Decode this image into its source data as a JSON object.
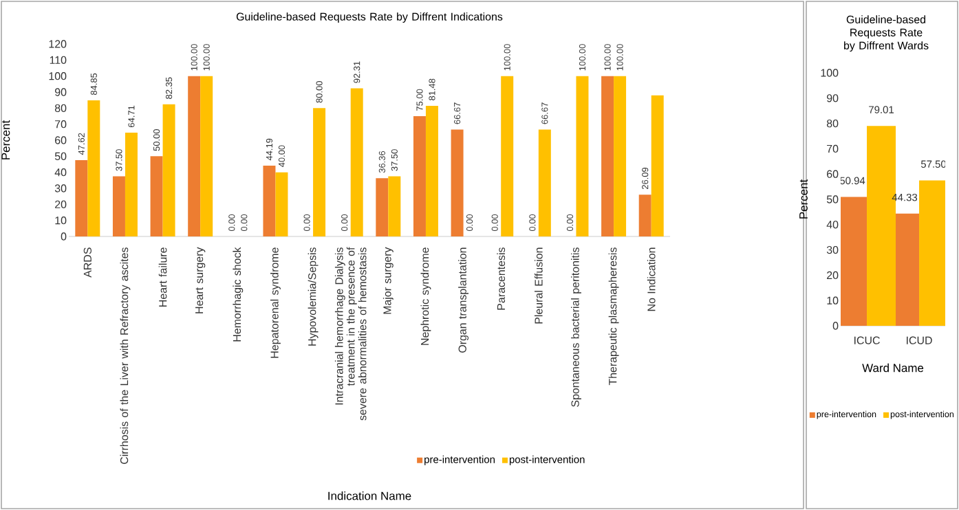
{
  "chart_data": [
    {
      "type": "bar",
      "title": "Guideline-based Requests Rate by Diffrent Indications",
      "xlabel": "Indication Name",
      "ylabel": "Percent",
      "categories": [
        "ARDS",
        "Cirrhosis of the Liver with Refractory ascites",
        "Heart failure",
        "Heart surgery",
        "Hemorrhagic shock",
        "Hepatorenal syndrome",
        "Hypovolemia/Sepsis",
        "Intracranial hemorrhage Dialysis treatment in the presence of severe abnormalities of hemostasis",
        "Major surgery",
        "Nephrotic syndrome",
        "Organ transplantation",
        "Paracentesis",
        "Pleural Effusion",
        "Spontaneous bacterial peritonitis",
        "Therapeutic plasmapheresis",
        "No Indication"
      ],
      "series": [
        {
          "name": "pre-intervention",
          "color": "#ed7d31",
          "values": [
            47.62,
            37.5,
            50.0,
            100.0,
            0,
            44.19,
            0,
            0,
            36.36,
            75.0,
            66.67,
            0,
            0,
            0,
            100.0,
            26.09
          ],
          "value_labels": [
            "47.62",
            "37.50",
            "50.00",
            "100.00",
            "0.00",
            "44.19",
            "0.00",
            "0.00",
            "36.36",
            "75.00",
            "66.67",
            "0.00",
            "0.00",
            "0.00",
            "100.00",
            "26.09"
          ]
        },
        {
          "name": "post-intervention",
          "color": "#ffc000",
          "values": [
            84.85,
            64.71,
            82.35,
            100.0,
            0,
            40.0,
            80.0,
            92.31,
            37.5,
            81.48,
            0,
            100.0,
            66.67,
            100.0,
            100.0,
            88
          ],
          "value_labels": [
            "84.85",
            "64.71",
            "82.35",
            "100.00",
            "0.00",
            "40.00",
            "80.00",
            "92.31",
            "37.50",
            "81.48",
            "0.00",
            "100.00",
            "66.67",
            "100.00",
            "100.00",
            null
          ]
        }
      ],
      "ylim": [
        0,
        120
      ],
      "yticks": [
        0,
        10,
        20,
        30,
        40,
        50,
        60,
        70,
        80,
        90,
        100,
        110,
        120
      ],
      "legend": "bottom"
    },
    {
      "type": "bar",
      "title": "Guideline-based Requests Rate by Diffrent Wards",
      "xlabel": "Ward Name",
      "ylabel": "Percent",
      "categories": [
        "ICUC",
        "ICUD"
      ],
      "series": [
        {
          "name": "pre-intervention",
          "color": "#ed7d31",
          "values": [
            50.94,
            44.33
          ],
          "value_labels": [
            "50.94",
            "44.33"
          ]
        },
        {
          "name": "post-intervention",
          "color": "#ffc000",
          "values": [
            79.01,
            57.5
          ],
          "value_labels": [
            "79.01",
            "57.50"
          ]
        }
      ],
      "ylim": [
        0,
        100
      ],
      "yticks": [
        0,
        10,
        20,
        30,
        40,
        50,
        60,
        70,
        80,
        90,
        100
      ],
      "legend": "bottom"
    }
  ]
}
